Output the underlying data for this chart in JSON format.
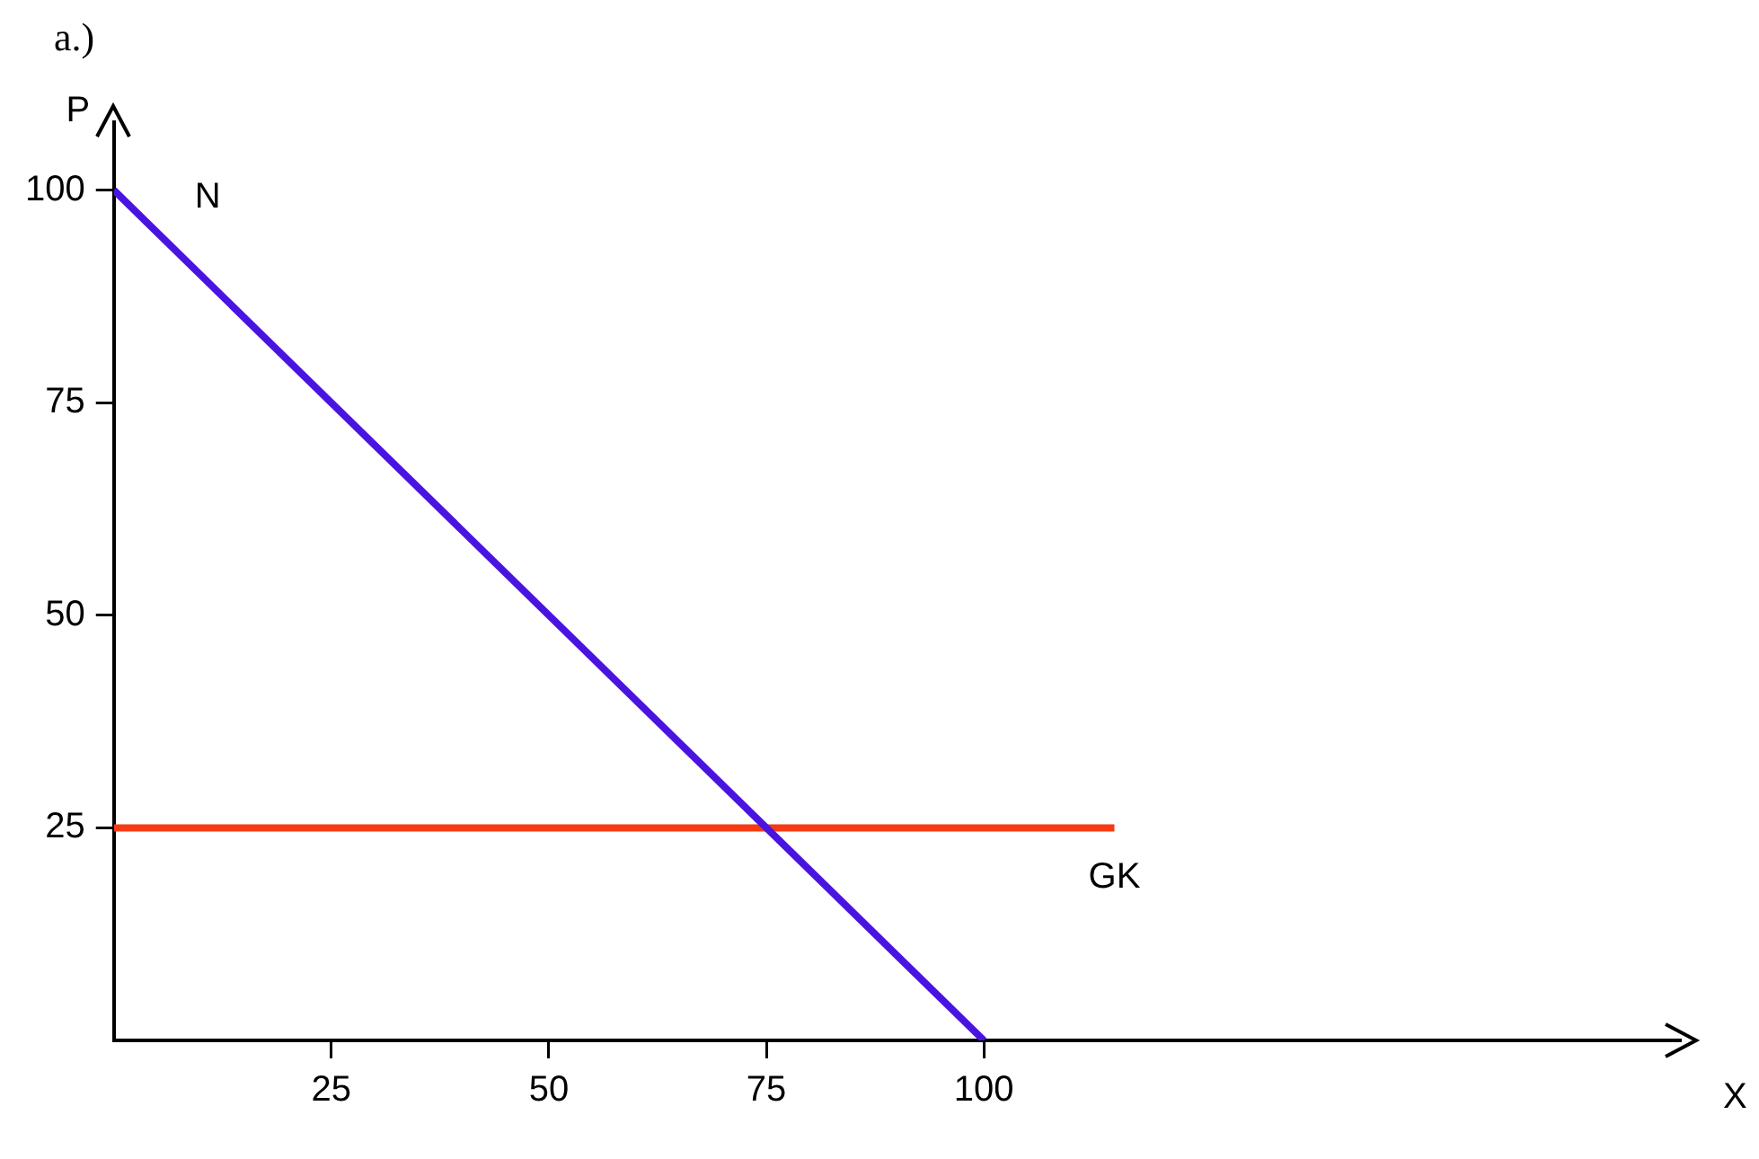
{
  "chart_data": {
    "type": "line",
    "title": "a.)",
    "xlabel": "X",
    "ylabel": "P",
    "xlim": [
      0,
      180
    ],
    "ylim": [
      0,
      108
    ],
    "xticks": [
      25,
      50,
      75,
      100
    ],
    "yticks": [
      25,
      50,
      75,
      100
    ],
    "grid": false,
    "legend": false,
    "marker": "none",
    "line_style": "solid",
    "series": [
      {
        "name": "N",
        "color": "#4a14e0",
        "x": [
          0,
          100
        ],
        "values": [
          100,
          0
        ]
      },
      {
        "name": "GK",
        "color": "#f53a14",
        "x": [
          0,
          115
        ],
        "values": [
          25,
          25
        ]
      }
    ]
  }
}
